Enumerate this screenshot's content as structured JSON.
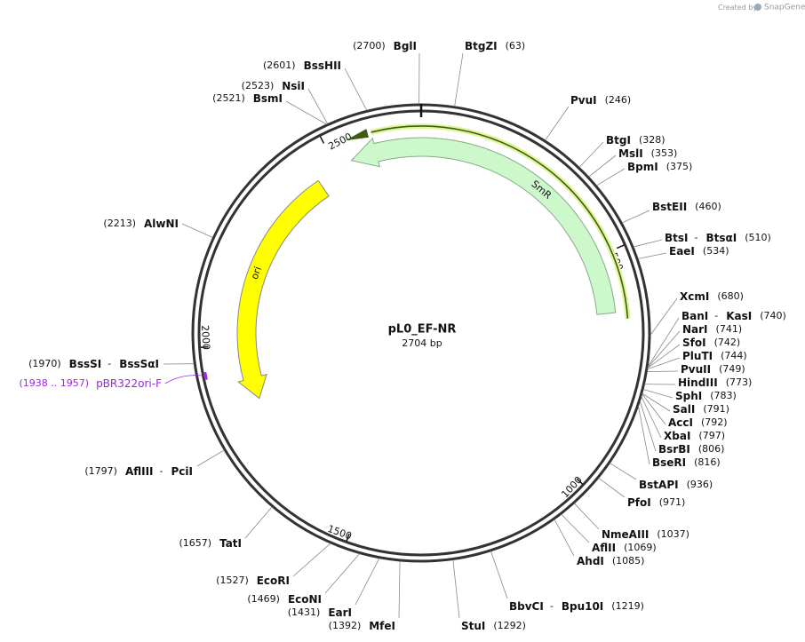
{
  "watermark": {
    "prefix": "Created by",
    "brand": "SnapGene"
  },
  "plasmid": {
    "name": "pL0_EF-NR",
    "length": "2704 bp"
  },
  "scale_ticks": [
    500,
    1000,
    1500,
    2000,
    2500
  ],
  "features": [
    {
      "label": "SmR"
    },
    {
      "label": "ori"
    }
  ],
  "primer": {
    "range": "(1938 .. 1957)",
    "label": "pBR322ori-F"
  },
  "sites": [
    {
      "names": [
        "BglI"
      ],
      "position": "(2700)"
    },
    {
      "names": [
        "BtgZI"
      ],
      "position": "(63)"
    },
    {
      "names": [
        "PvuI"
      ],
      "position": "(246)"
    },
    {
      "names": [
        "BtgI"
      ],
      "position": "(328)"
    },
    {
      "names": [
        "MslI"
      ],
      "position": "(353)"
    },
    {
      "names": [
        "BpmI"
      ],
      "position": "(375)"
    },
    {
      "names": [
        "BstEII"
      ],
      "position": "(460)"
    },
    {
      "names": [
        "BtsI",
        "BtsαI"
      ],
      "separator": "-",
      "position": "(510)"
    },
    {
      "names": [
        "EaeI"
      ],
      "position": "(534)"
    },
    {
      "names": [
        "XcmI"
      ],
      "position": "(680)"
    },
    {
      "names": [
        "BanI",
        "KasI"
      ],
      "separator": "-",
      "position": "(740)"
    },
    {
      "names": [
        "NarI"
      ],
      "position": "(741)"
    },
    {
      "names": [
        "SfoI"
      ],
      "position": "(742)"
    },
    {
      "names": [
        "PluTI"
      ],
      "position": "(744)"
    },
    {
      "names": [
        "PvuII"
      ],
      "position": "(749)"
    },
    {
      "names": [
        "HindIII"
      ],
      "position": "(773)"
    },
    {
      "names": [
        "SphI"
      ],
      "position": "(783)"
    },
    {
      "names": [
        "SalI"
      ],
      "position": "(791)"
    },
    {
      "names": [
        "AccI"
      ],
      "position": "(792)"
    },
    {
      "names": [
        "XbaI"
      ],
      "position": "(797)"
    },
    {
      "names": [
        "BsrBI"
      ],
      "position": "(806)"
    },
    {
      "names": [
        "BseRI"
      ],
      "position": "(816)"
    },
    {
      "names": [
        "BstAPI"
      ],
      "position": "(936)"
    },
    {
      "names": [
        "PfoI"
      ],
      "position": "(971)"
    },
    {
      "names": [
        "NmeAIII"
      ],
      "position": "(1037)"
    },
    {
      "names": [
        "AflII"
      ],
      "position": "(1069)"
    },
    {
      "names": [
        "AhdI"
      ],
      "position": "(1085)"
    },
    {
      "names": [
        "BbvCI",
        "Bpu10I"
      ],
      "separator": "-",
      "position": "(1219)"
    },
    {
      "names": [
        "StuI"
      ],
      "position": "(1292)"
    },
    {
      "names": [
        "MfeI"
      ],
      "position": "(1392)"
    },
    {
      "names": [
        "EarI"
      ],
      "position": "(1431)"
    },
    {
      "names": [
        "EcoNI"
      ],
      "position": "(1469)"
    },
    {
      "names": [
        "EcoRI"
      ],
      "position": "(1527)"
    },
    {
      "names": [
        "TatI"
      ],
      "position": "(1657)"
    },
    {
      "names": [
        "AflIII",
        "PciI"
      ],
      "separator": "-",
      "position": "(1797)"
    },
    {
      "names": [
        "BssSI",
        "BssSαI"
      ],
      "separator": "-",
      "position": "(1970)"
    },
    {
      "names": [
        "AlwNI"
      ],
      "position": "(2213)"
    },
    {
      "names": [
        "BsmI"
      ],
      "position": "(2521)"
    },
    {
      "names": [
        "NsiI"
      ],
      "position": "(2523)"
    },
    {
      "names": [
        "BssHII"
      ],
      "position": "(2601)"
    }
  ]
}
